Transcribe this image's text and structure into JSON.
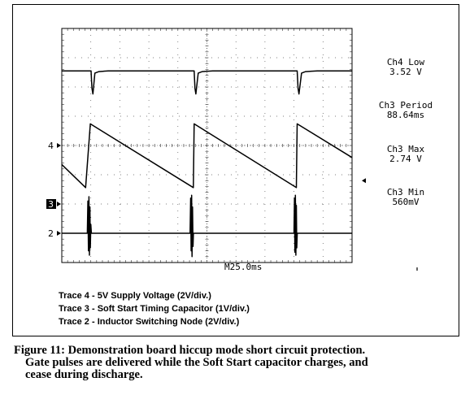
{
  "chart_data": {
    "type": "line",
    "title": "",
    "xlabel": "",
    "ylabel": "",
    "timebase": "M25.0ms",
    "x_unit": "ms",
    "x_divisions": 10,
    "y_divisions": 8,
    "grid": true,
    "channel_markers": [
      "4",
      "3",
      "2"
    ],
    "series": [
      {
        "name": "Trace 4 - 5V Supply Voltage (2V/div.)",
        "marker": "4",
        "x": [
          0,
          25.2,
          26.0,
          26.8,
          28.5,
          32,
          40,
          114.0,
          114.7,
          115.5,
          117.5,
          121,
          130,
          202.7,
          203.5,
          204.3,
          206.5,
          210,
          220,
          250
        ],
        "y": [
          5.1,
          5.1,
          3.9,
          3.52,
          4.95,
          5.05,
          5.1,
          5.1,
          3.9,
          3.52,
          4.95,
          5.05,
          5.1,
          5.1,
          3.9,
          3.52,
          4.95,
          5.05,
          5.1,
          5.1
        ]
      },
      {
        "name": "Trace 3 - Soft Start Timing Capacitor (1V/div.)",
        "marker": "3",
        "x": [
          0,
          20.5,
          24.6,
          113.3,
          114.0,
          202.0,
          202.7,
          250
        ],
        "y": [
          1.35,
          0.56,
          2.74,
          0.56,
          2.74,
          0.56,
          2.74,
          1.59
        ]
      },
      {
        "name": "Trace 2 - Inductor Switching Node (2V/div.)",
        "marker": "2",
        "x": [
          0,
          22.0,
          22.5,
          23.0,
          23.4,
          23.8,
          24.2,
          24.6,
          25.0,
          25.5,
          110.5,
          111.0,
          111.4,
          111.8,
          112.2,
          112.6,
          113.0,
          113.4,
          200.0,
          200.4,
          200.8,
          201.2,
          201.6,
          202.0,
          202.4,
          202.8,
          250
        ],
        "y": [
          0,
          0,
          2.2,
          -1.2,
          2.5,
          -1.5,
          1.8,
          -1.0,
          0.6,
          0,
          0,
          2.4,
          -1.2,
          2.6,
          -1.6,
          1.8,
          -0.9,
          0,
          0,
          2.4,
          -1.3,
          2.6,
          -1.5,
          1.9,
          -1.0,
          0,
          0
        ]
      }
    ],
    "measurements": [
      {
        "label": "Ch4 Low",
        "value": "3.52 V"
      },
      {
        "label": "Ch3 Period",
        "value": "88.64ms"
      },
      {
        "label": "Ch3 Max",
        "value": "2.74 V"
      },
      {
        "label": "Ch3 Min",
        "value": "560mV"
      }
    ],
    "legend": [
      "Trace 4 - 5V Supply Voltage (2V/div.)",
      "Trace 3 - Soft Start Timing Capacitor (1V/div.)",
      "Trace 2 - Inductor Switching Node (2V/div.)"
    ]
  },
  "caption": {
    "line1": "Figure 11: Demonstration board hiccup mode short circuit protection.",
    "line2": "Gate pulses are delivered while the Soft Start capacitor charges, and",
    "line3": "cease during discharge."
  }
}
